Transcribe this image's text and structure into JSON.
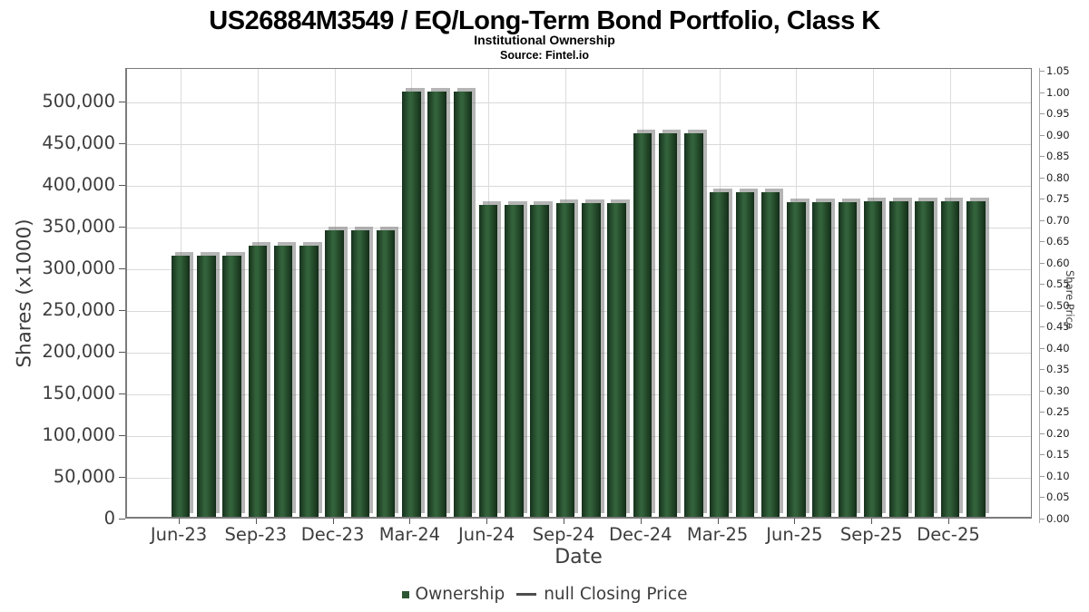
{
  "chart_data": {
    "type": "bar",
    "title": "US26884M3549 / EQ/Long-Term Bond Portfolio, Class K",
    "subtitle": "Institutional Ownership",
    "source": "Source: Fintel.io",
    "xlabel": "Date",
    "ylabel": "Shares (x1000)",
    "ylabel_right": "Share Price",
    "categories": [
      "Jun-23",
      "Sep-23",
      "Dec-23",
      "Mar-24",
      "Jun-24",
      "Sep-24",
      "Dec-24",
      "Mar-25",
      "Jun-25",
      "Sep-25",
      "Dec-25"
    ],
    "values": [
      313000,
      313000,
      313000,
      325000,
      325000,
      325000,
      343000,
      343000,
      343000,
      510000,
      510000,
      510000,
      374000,
      374000,
      374000,
      376000,
      376000,
      376000,
      460000,
      460000,
      460000,
      389000,
      389000,
      389000,
      377000,
      377000,
      377000,
      378000,
      378000,
      378000,
      378000,
      378000
    ],
    "ylim": [
      0,
      540000
    ],
    "ylim_right": [
      0,
      1.05
    ],
    "grid": true,
    "legend_position": "bottom",
    "left_axis_ticks": [
      {
        "value": 0,
        "label": "0"
      },
      {
        "value": 50000,
        "label": "50,000"
      },
      {
        "value": 100000,
        "label": "100,000"
      },
      {
        "value": 150000,
        "label": "150,000"
      },
      {
        "value": 200000,
        "label": "200,000"
      },
      {
        "value": 250000,
        "label": "250,000"
      },
      {
        "value": 300000,
        "label": "300,000"
      },
      {
        "value": 350000,
        "label": "350,000"
      },
      {
        "value": 400000,
        "label": "400,000"
      },
      {
        "value": 450000,
        "label": "450,000"
      },
      {
        "value": 500000,
        "label": "500,000"
      }
    ],
    "right_axis_ticks": [
      {
        "value": 0.0,
        "label": "0.00"
      },
      {
        "value": 0.05,
        "label": "0.05"
      },
      {
        "value": 0.1,
        "label": "0.10"
      },
      {
        "value": 0.15,
        "label": "0.15"
      },
      {
        "value": 0.2,
        "label": "0.20"
      },
      {
        "value": 0.25,
        "label": "0.25"
      },
      {
        "value": 0.3,
        "label": "0.30"
      },
      {
        "value": 0.35,
        "label": "0.35"
      },
      {
        "value": 0.4,
        "label": "0.40"
      },
      {
        "value": 0.45,
        "label": "0.45"
      },
      {
        "value": 0.5,
        "label": "0.50"
      },
      {
        "value": 0.55,
        "label": "0.55"
      },
      {
        "value": 0.6,
        "label": "0.60"
      },
      {
        "value": 0.65,
        "label": "0.65"
      },
      {
        "value": 0.7,
        "label": "0.70"
      },
      {
        "value": 0.75,
        "label": "0.75"
      },
      {
        "value": 0.8,
        "label": "0.80"
      },
      {
        "value": 0.85,
        "label": "0.85"
      },
      {
        "value": 0.9,
        "label": "0.90"
      },
      {
        "value": 0.95,
        "label": "0.95"
      },
      {
        "value": 1.0,
        "label": "1.00"
      },
      {
        "value": 1.05,
        "label": "1.05"
      }
    ],
    "legend": {
      "ownership": "Ownership",
      "price": "null Closing Price"
    },
    "colors": {
      "bar": "#2c5533",
      "bar_edge": "#16321c",
      "bar_shadow": "#787878",
      "gridline": "#d9d9d9",
      "plot_border": "#7b7b7b",
      "text": "#3d3d3d",
      "title_text": "#000000"
    }
  }
}
